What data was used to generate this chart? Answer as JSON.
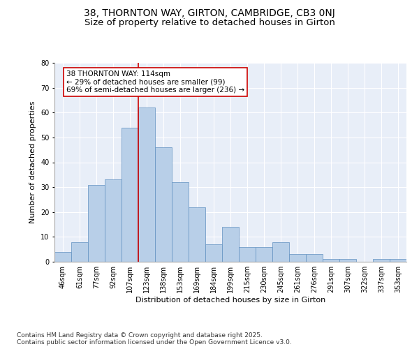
{
  "title_line1": "38, THORNTON WAY, GIRTON, CAMBRIDGE, CB3 0NJ",
  "title_line2": "Size of property relative to detached houses in Girton",
  "xlabel": "Distribution of detached houses by size in Girton",
  "ylabel": "Number of detached properties",
  "bar_labels": [
    "46sqm",
    "61sqm",
    "77sqm",
    "92sqm",
    "107sqm",
    "123sqm",
    "138sqm",
    "153sqm",
    "169sqm",
    "184sqm",
    "199sqm",
    "215sqm",
    "230sqm",
    "245sqm",
    "261sqm",
    "276sqm",
    "291sqm",
    "307sqm",
    "322sqm",
    "337sqm",
    "353sqm"
  ],
  "bar_values": [
    4,
    8,
    31,
    33,
    54,
    62,
    46,
    32,
    22,
    7,
    14,
    6,
    6,
    8,
    3,
    3,
    1,
    1,
    0,
    1,
    1
  ],
  "bar_color": "#b8cfe8",
  "bar_edge_color": "#6090c0",
  "property_line_x": 4.5,
  "property_line_color": "#cc0000",
  "annotation_text": "38 THORNTON WAY: 114sqm\n← 29% of detached houses are smaller (99)\n69% of semi-detached houses are larger (236) →",
  "annotation_box_color": "#cc0000",
  "ylim": [
    0,
    80
  ],
  "yticks": [
    0,
    10,
    20,
    30,
    40,
    50,
    60,
    70,
    80
  ],
  "background_color": "#e8eef8",
  "grid_color": "#ffffff",
  "footer_text": "Contains HM Land Registry data © Crown copyright and database right 2025.\nContains public sector information licensed under the Open Government Licence v3.0.",
  "title_fontsize": 10,
  "subtitle_fontsize": 9.5,
  "axis_label_fontsize": 8,
  "tick_fontsize": 7,
  "annotation_fontsize": 7.5,
  "footer_fontsize": 6.5
}
